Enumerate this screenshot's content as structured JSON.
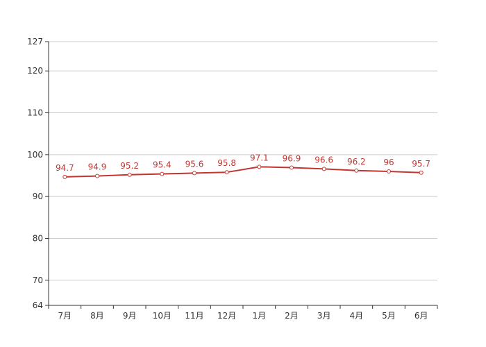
{
  "chart_data": {
    "type": "line",
    "categories": [
      "7月",
      "8月",
      "9月",
      "10月",
      "11月",
      "12月",
      "1月",
      "2月",
      "3月",
      "4月",
      "5月",
      "6月"
    ],
    "series": [
      {
        "values": [
          94.7,
          94.9,
          95.2,
          95.4,
          95.6,
          95.8,
          97.1,
          96.9,
          96.6,
          96.2,
          96,
          95.7
        ]
      }
    ],
    "value_labels": [
      "94.7",
      "94.9",
      "95.2",
      "95.4",
      "95.6",
      "95.8",
      "97.1",
      "96.9",
      "96.6",
      "96.2",
      "96",
      "95.7"
    ],
    "ylim": [
      64,
      127
    ],
    "yticks": [
      64,
      70,
      80,
      90,
      100,
      110,
      120,
      127
    ],
    "ytick_labels": [
      "64",
      "70",
      "80",
      "90",
      "100",
      "110",
      "120",
      "127"
    ],
    "grid": true,
    "colors": {
      "line": "#c23531",
      "marker_fill": "#ffffff",
      "grid": "#cccccc",
      "axis": "#333333"
    }
  }
}
